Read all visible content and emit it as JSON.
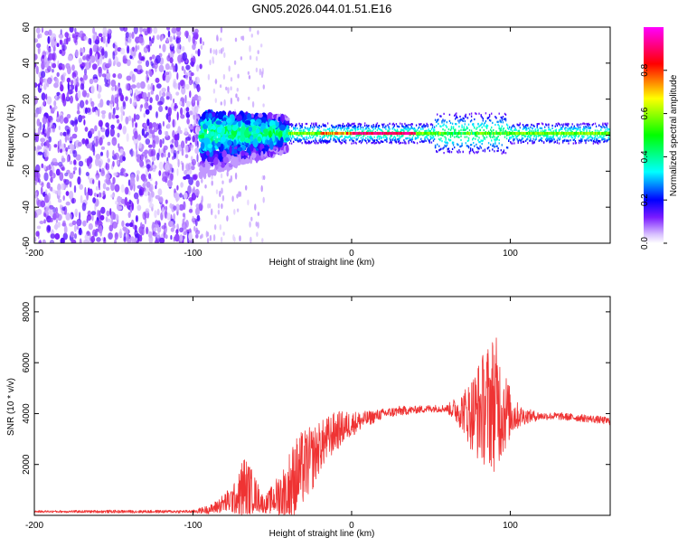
{
  "title": "GN05.2026.044.01.51.E16",
  "colors": {
    "snr_line": "#ef3333",
    "frame": "#000000",
    "background": "#ffffff",
    "colormap": [
      "#ffffff",
      "#ecdcff",
      "#c9a6ff",
      "#8b3cff",
      "#5b00f0",
      "#0000ff",
      "#00ffff",
      "#00ff00",
      "#ffff00",
      "#ff0000",
      "#ff00ff"
    ]
  },
  "chart_data": [
    {
      "type": "heatmap",
      "title": "",
      "xlabel": "Height of straight line (km)",
      "ylabel": "Frequency (Hz)",
      "xlim": [
        -200,
        163
      ],
      "ylim": [
        -60,
        60
      ],
      "xticks": [
        -200,
        -100,
        0,
        100
      ],
      "xtick_labels": [
        "-200",
        "-100",
        "0",
        "100"
      ],
      "yticks": [
        -60,
        -40,
        -20,
        0,
        20,
        40,
        60
      ],
      "ytick_labels": [
        "-60",
        "-40",
        "-20",
        "0",
        "20",
        "40",
        "60"
      ],
      "colorbar": {
        "label": "Normalized spectral amplitude",
        "range": [
          0,
          1
        ],
        "ticks": [
          0.0,
          0.2,
          0.4,
          0.6,
          0.8
        ],
        "tick_labels": [
          "0.0",
          "0.2",
          "0.4",
          "0.6",
          "0.8"
        ]
      },
      "regions": [
        {
          "x_range": [
            -200,
            -100
          ],
          "description": "scattered noise",
          "amplitude": 0.1
        },
        {
          "x_range": [
            -95,
            -40
          ],
          "description": "onset, broad spread",
          "amplitude": 0.35
        },
        {
          "x_range": [
            -40,
            163
          ],
          "description": "narrow band near 0 Hz",
          "amplitude": 0.85
        }
      ],
      "band_center_hz": 1,
      "peak_amplitude_x": [
        0,
        40
      ]
    },
    {
      "type": "line",
      "title": "",
      "xlabel": "Height of straight line (km)",
      "ylabel": "SNR (10 * v/v)",
      "xlim": [
        -200,
        163
      ],
      "ylim": [
        0,
        8600
      ],
      "xticks": [
        -200,
        -100,
        0,
        100
      ],
      "xtick_labels": [
        "-200",
        "-100",
        "0",
        "100"
      ],
      "yticks": [
        2000,
        4000,
        6000,
        8000
      ],
      "ytick_labels": [
        "2000",
        "4000",
        "6000",
        "8000"
      ],
      "series": [
        {
          "name": "SNR",
          "x": [
            -200,
            -150,
            -100,
            -88,
            -80,
            -72,
            -68,
            -62,
            -55,
            -48,
            -40,
            -35,
            -30,
            -25,
            -20,
            -10,
            0,
            10,
            20,
            30,
            40,
            50,
            60,
            70,
            75,
            80,
            85,
            90,
            95,
            100,
            105,
            110,
            120,
            130,
            140,
            150,
            163
          ],
          "values": [
            150,
            150,
            150,
            250,
            500,
            700,
            1100,
            900,
            400,
            700,
            1000,
            1500,
            1900,
            2200,
            2700,
            3300,
            3600,
            3800,
            4000,
            4100,
            4150,
            4200,
            4200,
            4100,
            4000,
            4100,
            4300,
            4500,
            4200,
            4000,
            3900,
            3900,
            3900,
            3900,
            3850,
            3800,
            3700
          ],
          "noise_envelope": [
            40,
            60,
            60,
            200,
            400,
            700,
            1400,
            800,
            300,
            700,
            1500,
            1600,
            1500,
            1300,
            1000,
            800,
            500,
            300,
            200,
            200,
            150,
            150,
            150,
            800,
            1400,
            2000,
            2400,
            2800,
            2000,
            1000,
            500,
            300,
            150,
            150,
            150,
            150,
            150
          ]
        }
      ]
    }
  ]
}
